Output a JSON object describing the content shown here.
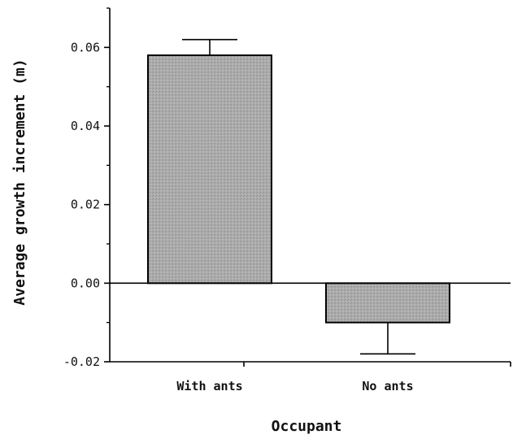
{
  "chart_data": {
    "type": "bar",
    "title": "",
    "xlabel": "Occupant",
    "ylabel": "Average growth increment (m)",
    "categories": [
      "With ants",
      "No ants"
    ],
    "values": [
      0.058,
      -0.01
    ],
    "error": [
      0.004,
      0.008
    ],
    "ylim": [
      -0.02,
      0.07
    ],
    "yticks": [
      -0.02,
      0.0,
      0.02,
      0.04,
      0.06
    ],
    "ytick_labels": [
      "-0.02",
      "0.00",
      "0.02",
      "0.04",
      "0.06"
    ],
    "grid": false,
    "legend": "none",
    "bar_color": "#a9a9a9",
    "bar_edge_color": "#000000"
  }
}
